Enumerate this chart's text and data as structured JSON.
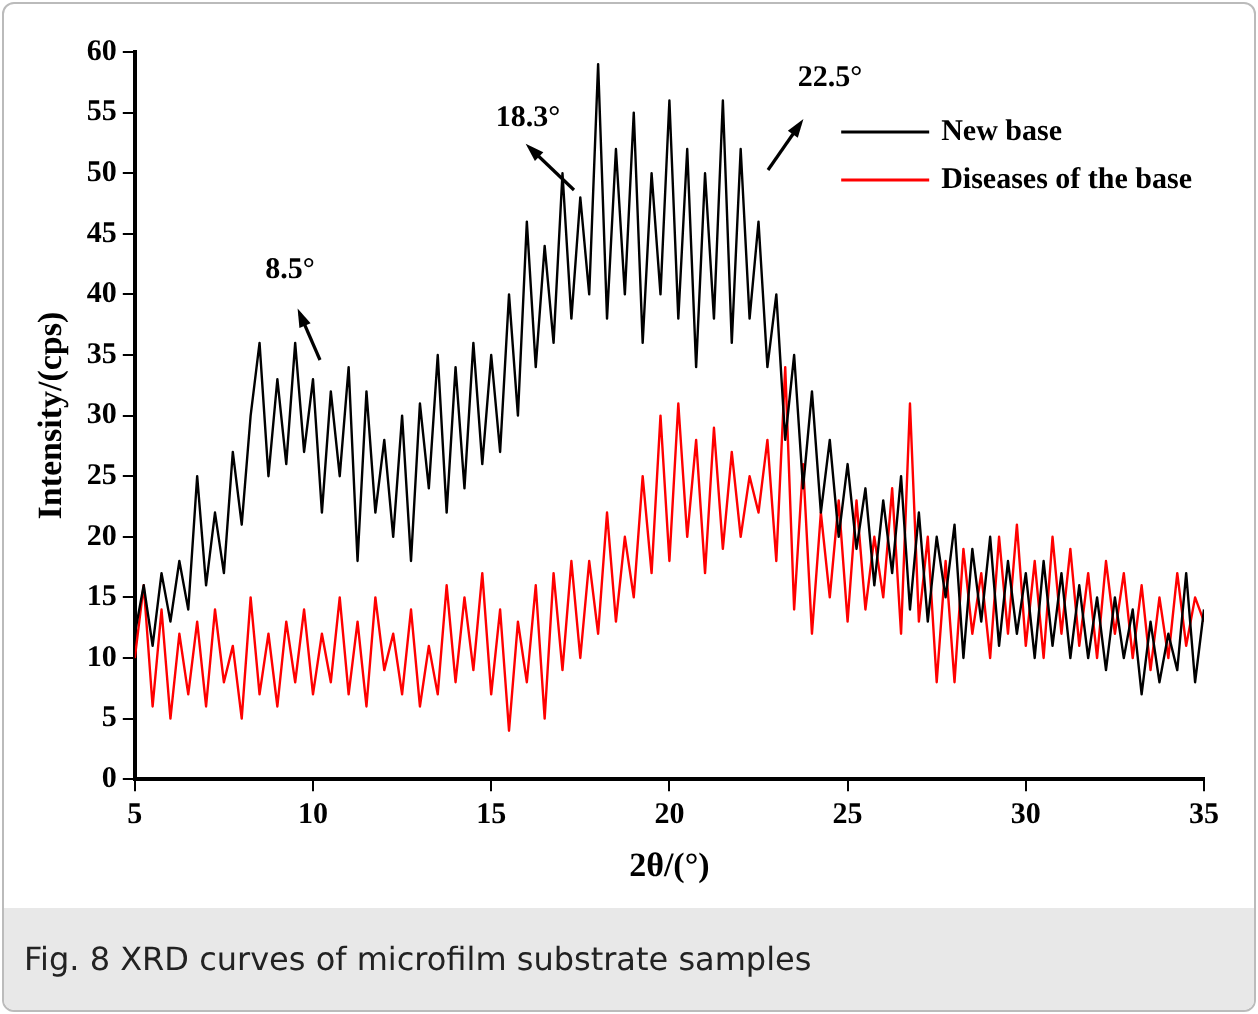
{
  "chart_data": {
    "type": "line",
    "xlabel": "2θ/(°)",
    "ylabel": "Intensity/(cps)",
    "xlim": [
      5,
      35
    ],
    "xticks": [
      5,
      10,
      15,
      20,
      25,
      30,
      35
    ],
    "ylim": [
      0,
      60
    ],
    "yticks": [
      0,
      5,
      10,
      15,
      20,
      25,
      30,
      35,
      40,
      45,
      50,
      55,
      60
    ],
    "grid": false,
    "legend": "top right",
    "marker": "none",
    "line_style": "solid",
    "x": [
      5,
      5.25,
      5.5,
      5.75,
      6,
      6.25,
      6.5,
      6.75,
      7,
      7.25,
      7.5,
      7.75,
      8,
      8.25,
      8.5,
      8.75,
      9,
      9.25,
      9.5,
      9.75,
      10,
      10.25,
      10.5,
      10.75,
      11,
      11.25,
      11.5,
      11.75,
      12,
      12.25,
      12.5,
      12.75,
      13,
      13.25,
      13.5,
      13.75,
      14,
      14.25,
      14.5,
      14.75,
      15,
      15.25,
      15.5,
      15.75,
      16,
      16.25,
      16.5,
      16.75,
      17,
      17.25,
      17.5,
      17.75,
      18,
      18.25,
      18.5,
      18.75,
      19,
      19.25,
      19.5,
      19.75,
      20,
      20.25,
      20.5,
      20.75,
      21,
      21.25,
      21.5,
      21.75,
      22,
      22.25,
      22.5,
      22.75,
      23,
      23.25,
      23.5,
      23.75,
      24,
      24.25,
      24.5,
      24.75,
      25,
      25.25,
      25.5,
      25.75,
      26,
      26.25,
      26.5,
      26.75,
      27,
      27.25,
      27.5,
      27.75,
      28,
      28.25,
      28.5,
      28.75,
      29,
      29.25,
      29.5,
      29.75,
      30,
      30.25,
      30.5,
      30.75,
      31,
      31.25,
      31.5,
      31.75,
      32,
      32.25,
      32.5,
      32.75,
      33,
      33.25,
      33.5,
      33.75,
      34,
      34.25,
      34.5,
      34.75,
      35
    ],
    "series": [
      {
        "name": "New base",
        "color": "#000000",
        "values": [
          12,
          16,
          11,
          17,
          13,
          18,
          14,
          25,
          16,
          22,
          17,
          27,
          21,
          30,
          36,
          25,
          33,
          26,
          36,
          27,
          33,
          22,
          32,
          25,
          34,
          18,
          32,
          22,
          28,
          20,
          30,
          18,
          31,
          24,
          35,
          22,
          34,
          24,
          36,
          26,
          35,
          27,
          40,
          30,
          46,
          34,
          44,
          36,
          50,
          38,
          48,
          40,
          59,
          38,
          52,
          40,
          55,
          36,
          50,
          40,
          56,
          38,
          52,
          34,
          50,
          38,
          56,
          36,
          52,
          38,
          46,
          34,
          40,
          28,
          35,
          24,
          32,
          22,
          28,
          20,
          26,
          19,
          24,
          16,
          23,
          17,
          25,
          14,
          22,
          13,
          20,
          15,
          21,
          10,
          19,
          13,
          20,
          11,
          18,
          12,
          17,
          10,
          18,
          11,
          17,
          10,
          16,
          10,
          15,
          9,
          15,
          10,
          14,
          7,
          13,
          8,
          12,
          9,
          17,
          8,
          14
        ]
      },
      {
        "name": "Diseases of the base",
        "color": "#ff0000",
        "values": [
          10,
          16,
          6,
          14,
          5,
          12,
          7,
          13,
          6,
          14,
          8,
          11,
          5,
          15,
          7,
          12,
          6,
          13,
          8,
          14,
          7,
          12,
          8,
          15,
          7,
          13,
          6,
          15,
          9,
          12,
          7,
          14,
          6,
          11,
          7,
          16,
          8,
          15,
          9,
          17,
          7,
          14,
          4,
          13,
          8,
          16,
          5,
          17,
          9,
          18,
          10,
          18,
          12,
          22,
          13,
          20,
          15,
          25,
          17,
          30,
          18,
          31,
          20,
          28,
          17,
          29,
          19,
          27,
          20,
          25,
          22,
          28,
          18,
          34,
          14,
          26,
          12,
          22,
          15,
          23,
          13,
          23,
          14,
          20,
          15,
          24,
          12,
          31,
          13,
          20,
          8,
          18,
          8,
          19,
          12,
          17,
          10,
          20,
          12,
          21,
          11,
          18,
          10,
          20,
          12,
          19,
          11,
          17,
          10,
          18,
          12,
          17,
          10,
          16,
          9,
          15,
          10,
          17,
          11,
          15,
          13
        ]
      }
    ],
    "annotations": [
      "8.5°",
      "18.3°",
      "22.5°",
      "Fig. 8  XRD curves of microfilm substrate samples"
    ]
  }
}
